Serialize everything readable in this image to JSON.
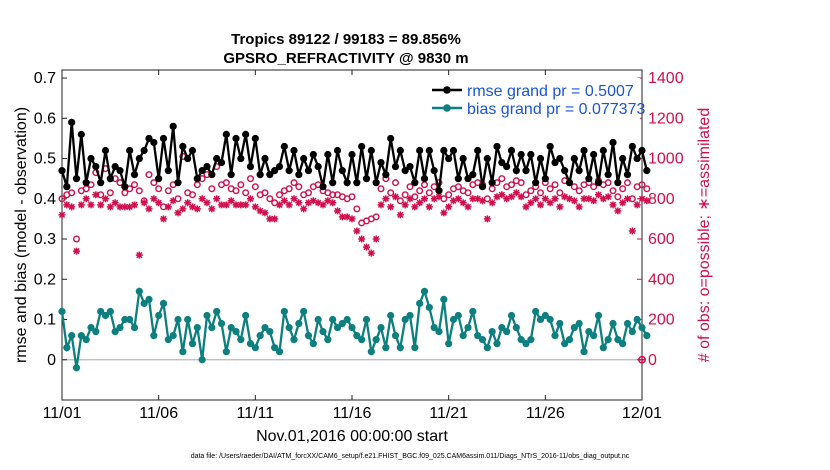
{
  "chart_data": {
    "type": "line",
    "title_line1": "Tropics 89122 / 99183 = 89.856%",
    "title_line2": "GPSRO_REFRACTIVITY @ 9830 m",
    "xlabel": "Nov.01,2016 00:00:00 start",
    "ylabel": "rmse and bias (model - observation)",
    "y2label": "# of obs: o=possible; ∗=assimilated",
    "footnote": "data file: /Users/raeder/DAI/ATM_forcXX/CAM6_setup/f.e21.FHIST_BGC.f09_025.CAM6assim.011/Diags_NTrS_2016-11/obs_diag_output.nc",
    "xlim": [
      0,
      30
    ],
    "ylim": [
      -0.1,
      0.72
    ],
    "y2lim": [
      -200,
      1440
    ],
    "x_ticks": [
      {
        "value": 0,
        "label": "11/01"
      },
      {
        "value": 5,
        "label": "11/06"
      },
      {
        "value": 10,
        "label": "11/11"
      },
      {
        "value": 15,
        "label": "11/16"
      },
      {
        "value": 20,
        "label": "11/21"
      },
      {
        "value": 25,
        "label": "11/26"
      },
      {
        "value": 30,
        "label": "12/01"
      }
    ],
    "y_ticks": [
      {
        "value": 0,
        "label": "0"
      },
      {
        "value": 0.1,
        "label": "0.1"
      },
      {
        "value": 0.2,
        "label": "0.2"
      },
      {
        "value": 0.3,
        "label": "0.3"
      },
      {
        "value": 0.4,
        "label": "0.4"
      },
      {
        "value": 0.5,
        "label": "0.5"
      },
      {
        "value": 0.6,
        "label": "0.6"
      },
      {
        "value": 0.7,
        "label": "0.7"
      }
    ],
    "y2_ticks": [
      {
        "value": 0,
        "label": "0"
      },
      {
        "value": 200,
        "label": "200"
      },
      {
        "value": 400,
        "label": "400"
      },
      {
        "value": 600,
        "label": "600"
      },
      {
        "value": 800,
        "label": "800"
      },
      {
        "value": 1000,
        "label": "1000"
      },
      {
        "value": 1200,
        "label": "1200"
      },
      {
        "value": 1400,
        "label": "1400"
      }
    ],
    "legend_position": "top-right",
    "series": [
      {
        "name": "rmse grand pr = 0.5007",
        "color": "#000000",
        "axis": "left",
        "marker": "filled-circle",
        "x_start": 0,
        "x_step": 0.25,
        "values": [
          0.47,
          0.43,
          0.59,
          0.45,
          0.56,
          0.44,
          0.5,
          0.48,
          0.44,
          0.52,
          0.45,
          0.48,
          0.47,
          0.43,
          0.52,
          0.46,
          0.5,
          0.52,
          0.55,
          0.54,
          0.45,
          0.55,
          0.47,
          0.58,
          0.44,
          0.53,
          0.5,
          0.52,
          0.45,
          0.47,
          0.48,
          0.46,
          0.5,
          0.49,
          0.56,
          0.46,
          0.55,
          0.5,
          0.56,
          0.48,
          0.55,
          0.46,
          0.5,
          0.46,
          0.47,
          0.48,
          0.53,
          0.47,
          0.52,
          0.46,
          0.5,
          0.47,
          0.51,
          0.48,
          0.43,
          0.51,
          0.44,
          0.52,
          0.47,
          0.44,
          0.51,
          0.44,
          0.53,
          0.45,
          0.52,
          0.44,
          0.49,
          0.46,
          0.55,
          0.48,
          0.52,
          0.47,
          0.48,
          0.44,
          0.52,
          0.45,
          0.52,
          0.47,
          0.42,
          0.52,
          0.5,
          0.52,
          0.45,
          0.5,
          0.45,
          0.46,
          0.52,
          0.43,
          0.5,
          0.44,
          0.53,
          0.49,
          0.48,
          0.52,
          0.47,
          0.51,
          0.47,
          0.51,
          0.44,
          0.5,
          0.45,
          0.53,
          0.49,
          0.5,
          0.47,
          0.44,
          0.5,
          0.47,
          0.52,
          0.45,
          0.51,
          0.44,
          0.52,
          0.46,
          0.54,
          0.44,
          0.5,
          0.46,
          0.53,
          0.5,
          0.52,
          0.47
        ]
      },
      {
        "name": "bias grand pr = 0.077373",
        "color": "#0e7f7f",
        "axis": "left",
        "marker": "filled-circle",
        "x_start": 0,
        "x_step": 0.25,
        "values": [
          0.12,
          0.03,
          0.06,
          -0.02,
          0.06,
          0.05,
          0.08,
          0.07,
          0.12,
          0.11,
          0.12,
          0.07,
          0.08,
          0.1,
          0.1,
          0.08,
          0.17,
          0.14,
          0.15,
          0.06,
          0.11,
          0.14,
          0.05,
          0.06,
          0.1,
          0.02,
          0.1,
          0.04,
          0.08,
          0.0,
          0.11,
          0.08,
          0.12,
          0.09,
          0.02,
          0.08,
          0.07,
          0.05,
          0.11,
          0.04,
          0.03,
          0.06,
          0.08,
          0.07,
          0.03,
          0.02,
          0.12,
          0.08,
          0.05,
          0.09,
          0.12,
          0.06,
          0.04,
          0.1,
          0.07,
          0.05,
          0.1,
          0.08,
          0.09,
          0.1,
          0.08,
          0.06,
          0.05,
          0.1,
          0.02,
          0.05,
          0.08,
          0.03,
          0.11,
          0.06,
          0.03,
          0.1,
          0.11,
          0.03,
          0.14,
          0.17,
          0.13,
          0.08,
          0.07,
          0.15,
          0.04,
          0.1,
          0.11,
          0.06,
          0.08,
          0.12,
          0.06,
          0.05,
          0.03,
          0.07,
          0.04,
          0.08,
          0.07,
          0.11,
          0.08,
          0.05,
          0.04,
          0.05,
          0.12,
          0.1,
          0.11,
          0.1,
          0.06,
          0.09,
          0.04,
          0.05,
          0.08,
          0.09,
          0.02,
          0.07,
          0.06,
          0.11,
          0.03,
          0.05,
          0.09,
          0.05,
          0.04,
          0.09,
          0.07,
          0.1,
          0.08,
          0.06
        ]
      },
      {
        "name": "possible",
        "color": "#d0104c",
        "axis": "right",
        "marker": "open-circle",
        "x_start": 0,
        "x_step": 0.25,
        "values": [
          800,
          820,
          830,
          600,
          840,
          850,
          870,
          930,
          820,
          950,
          830,
          900,
          880,
          830,
          850,
          870,
          840,
          790,
          920,
          880,
          850,
          760,
          840,
          870,
          800,
          1010,
          830,
          820,
          870,
          900,
          920,
          850,
          960,
          870,
          880,
          850,
          840,
          870,
          830,
          900,
          860,
          820,
          830,
          800,
          780,
          820,
          840,
          850,
          880,
          860,
          820,
          830,
          860,
          870,
          840,
          830,
          820,
          820,
          810,
          800,
          810,
          750,
          680,
          690,
          700,
          710,
          850,
          900,
          830,
          880,
          790,
          820,
          860,
          810,
          840,
          870,
          830,
          860,
          880,
          800,
          820,
          850,
          860,
          840,
          830,
          870,
          880,
          870,
          800,
          850,
          880,
          900,
          860,
          870,
          890,
          880,
          820,
          840,
          860,
          830,
          880,
          850,
          870,
          830,
          890,
          880,
          860,
          840,
          870,
          880,
          860,
          890,
          870,
          880,
          840,
          810,
          850,
          880,
          800,
          860,
          870,
          850
        ]
      },
      {
        "name": "assimilated",
        "color": "#d0104c",
        "axis": "right",
        "marker": "asterisk",
        "x_start": 0,
        "x_step": 0.25,
        "values": [
          720,
          770,
          760,
          540,
          770,
          800,
          770,
          820,
          770,
          800,
          760,
          780,
          760,
          760,
          760,
          770,
          520,
          780,
          750,
          800,
          780,
          700,
          760,
          790,
          730,
          750,
          780,
          760,
          750,
          800,
          780,
          750,
          800,
          770,
          770,
          790,
          770,
          770,
          770,
          800,
          760,
          740,
          730,
          700,
          700,
          770,
          790,
          770,
          800,
          780,
          750,
          780,
          790,
          780,
          770,
          790,
          780,
          740,
          710,
          710,
          700,
          640,
          600,
          560,
          530,
          600,
          770,
          800,
          760,
          810,
          720,
          770,
          800,
          760,
          780,
          800,
          760,
          800,
          810,
          730,
          760,
          790,
          800,
          780,
          760,
          800,
          800,
          790,
          700,
          780,
          810,
          820,
          800,
          810,
          830,
          810,
          760,
          780,
          800,
          770,
          800,
          780,
          800,
          760,
          810,
          800,
          790,
          760,
          800,
          800,
          790,
          820,
          800,
          810,
          770,
          740,
          780,
          800,
          640,
          770,
          800,
          790
        ]
      }
    ]
  }
}
